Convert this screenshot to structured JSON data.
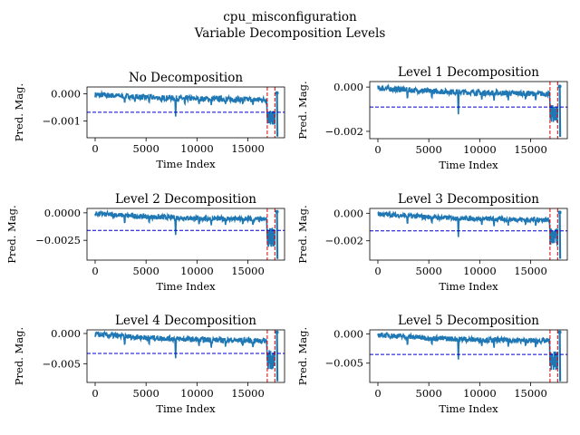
{
  "figure": {
    "suptitle_line1": "cpu_misconfiguration",
    "suptitle_line2": "Variable Decomposition Levels"
  },
  "colors": {
    "series": "#1f77b4",
    "threshold": "#0000cc",
    "anomaly": "#dd0000",
    "axes": "#000000"
  },
  "chart_data": [
    {
      "type": "line",
      "title": "No Decomposition",
      "xlabel": "Time Index",
      "ylabel": "Pred. Mag.",
      "xlim": [
        -800,
        18600
      ],
      "ylim": [
        -0.00162,
        0.00025
      ],
      "xticks": [
        0,
        5000,
        10000,
        15000
      ],
      "xtick_labels": [
        "0",
        "5000",
        "10000",
        "15000"
      ],
      "yticks": [
        0.0,
        -0.001
      ],
      "ytick_labels": [
        "0.000",
        "−0.001"
      ],
      "threshold": -0.00068,
      "anomaly_window": [
        16900,
        17650
      ],
      "series_profile": {
        "baseline": [
          [
            0,
            -3e-05
          ],
          [
            5000,
            -0.00013
          ],
          [
            10000,
            -0.00018
          ],
          [
            16500,
            -0.00022
          ]
        ],
        "noise_band": 0.0002,
        "dips": [
          [
            2900,
            -0.00038
          ],
          [
            3900,
            -0.00034
          ],
          [
            5300,
            -0.00036
          ],
          [
            6500,
            -0.00032
          ],
          [
            7900,
            -0.00092
          ],
          [
            8800,
            -0.00042
          ],
          [
            10200,
            -0.0004
          ],
          [
            11400,
            -0.00044
          ],
          [
            12800,
            -0.00038
          ],
          [
            14500,
            -0.0004
          ],
          [
            15500,
            -0.00045
          ]
        ],
        "anomaly_range": [
          -0.00115,
          -0.00062
        ],
        "end_spike": [
          [
            17850,
            3e-05
          ],
          [
            17900,
            -0.00158
          ]
        ]
      }
    },
    {
      "type": "line",
      "title": "Level 1 Decomposition",
      "xlabel": "Time Index",
      "ylabel": "Pred. Mag.",
      "xlim": [
        -800,
        18600
      ],
      "ylim": [
        -0.00233,
        0.00025
      ],
      "xticks": [
        0,
        5000,
        10000,
        15000
      ],
      "xtick_labels": [
        "0",
        "5000",
        "10000",
        "15000"
      ],
      "yticks": [
        0.0,
        -0.002
      ],
      "ytick_labels": [
        "0.000",
        "−0.002"
      ],
      "threshold": -0.0009,
      "anomaly_window": [
        16900,
        17650
      ],
      "series_profile": {
        "baseline": [
          [
            0,
            -5e-05
          ],
          [
            5000,
            -0.00018
          ],
          [
            10000,
            -0.00025
          ],
          [
            16500,
            -0.0003
          ]
        ],
        "noise_band": 0.00025,
        "dips": [
          [
            2900,
            -0.0006
          ],
          [
            5300,
            -0.00055
          ],
          [
            7900,
            -0.00135
          ],
          [
            10200,
            -0.0006
          ],
          [
            11400,
            -0.00065
          ],
          [
            12800,
            -0.0006
          ],
          [
            14500,
            -0.0006
          ],
          [
            15500,
            -0.00065
          ]
        ],
        "anomaly_range": [
          -0.0016,
          -0.0008
        ],
        "end_spike": [
          [
            17850,
            3e-05
          ],
          [
            17900,
            -0.00225
          ]
        ]
      }
    },
    {
      "type": "line",
      "title": "Level 2 Decomposition",
      "xlabel": "Time Index",
      "ylabel": "Pred. Mag.",
      "xlim": [
        -800,
        18600
      ],
      "ylim": [
        -0.0043,
        0.0004
      ],
      "xticks": [
        0,
        5000,
        10000,
        15000
      ],
      "xtick_labels": [
        "0",
        "5000",
        "10000",
        "15000"
      ],
      "yticks": [
        0.0,
        -0.0025
      ],
      "ytick_labels": [
        "0.0000",
        "−0.0025"
      ],
      "threshold": -0.0016,
      "anomaly_window": [
        16900,
        17650
      ],
      "series_profile": {
        "baseline": [
          [
            0,
            -8e-05
          ],
          [
            5000,
            -0.00035
          ],
          [
            10000,
            -0.0005
          ],
          [
            16500,
            -0.0006
          ]
        ],
        "noise_band": 0.00045,
        "dips": [
          [
            2900,
            -0.0011
          ],
          [
            5300,
            -0.001
          ],
          [
            7900,
            -0.0022
          ],
          [
            10200,
            -0.0011
          ],
          [
            11400,
            -0.0012
          ],
          [
            12800,
            -0.0011
          ],
          [
            14500,
            -0.0011
          ],
          [
            15500,
            -0.0012
          ]
        ],
        "anomaly_range": [
          -0.0031,
          -0.0014
        ],
        "end_spike": [
          [
            17850,
            0.0001
          ],
          [
            17900,
            -0.0042
          ]
        ]
      }
    },
    {
      "type": "line",
      "title": "Level 3 Decomposition",
      "xlabel": "Time Index",
      "ylabel": "Pred. Mag.",
      "xlim": [
        -800,
        18600
      ],
      "ylim": [
        -0.0034,
        0.00035
      ],
      "xticks": [
        0,
        5000,
        10000,
        15000
      ],
      "xtick_labels": [
        "0",
        "5000",
        "10000",
        "15000"
      ],
      "yticks": [
        0.0,
        -0.002
      ],
      "ytick_labels": [
        "0.000",
        "−0.002"
      ],
      "threshold": -0.00128,
      "anomaly_window": [
        16900,
        17650
      ],
      "series_profile": {
        "baseline": [
          [
            0,
            -6e-05
          ],
          [
            5000,
            -0.00028
          ],
          [
            10000,
            -0.0004
          ],
          [
            16500,
            -0.00048
          ]
        ],
        "noise_band": 0.00035,
        "dips": [
          [
            2900,
            -0.0009
          ],
          [
            5300,
            -0.0008
          ],
          [
            7900,
            -0.0019
          ],
          [
            10200,
            -0.0009
          ],
          [
            11400,
            -0.001
          ],
          [
            12800,
            -0.0009
          ],
          [
            14500,
            -0.0009
          ],
          [
            15500,
            -0.001
          ]
        ],
        "anomaly_range": [
          -0.0024,
          -0.0011
        ],
        "end_spike": [
          [
            17850,
            6e-05
          ],
          [
            17900,
            -0.0033
          ]
        ]
      }
    },
    {
      "type": "line",
      "title": "Level 4 Decomposition",
      "xlabel": "Time Index",
      "ylabel": "Pred. Mag.",
      "xlim": [
        -800,
        18600
      ],
      "ylim": [
        -0.0081,
        0.0006
      ],
      "xticks": [
        0,
        5000,
        10000,
        15000
      ],
      "xtick_labels": [
        "0",
        "5000",
        "10000",
        "15000"
      ],
      "yticks": [
        0.0,
        -0.005
      ],
      "ytick_labels": [
        "0.000",
        "−0.005"
      ],
      "threshold": -0.0033,
      "anomaly_window": [
        16900,
        17650
      ],
      "series_profile": {
        "baseline": [
          [
            0,
            -0.00015
          ],
          [
            5000,
            -0.0007
          ],
          [
            10000,
            -0.001
          ],
          [
            16500,
            -0.0012
          ]
        ],
        "noise_band": 0.0009,
        "dips": [
          [
            2900,
            -0.0022
          ],
          [
            5300,
            -0.002
          ],
          [
            7900,
            -0.0045
          ],
          [
            10200,
            -0.0022
          ],
          [
            11400,
            -0.0025
          ],
          [
            12800,
            -0.0022
          ],
          [
            14500,
            -0.0022
          ],
          [
            15500,
            -0.0025
          ]
        ],
        "anomaly_range": [
          -0.006,
          -0.0028
        ],
        "end_spike": [
          [
            17850,
            0.0002
          ],
          [
            17900,
            -0.0079
          ]
        ]
      }
    },
    {
      "type": "line",
      "title": "Level 5 Decomposition",
      "xlabel": "Time Index",
      "ylabel": "Pred. Mag.",
      "xlim": [
        -800,
        18600
      ],
      "ylim": [
        -0.0083,
        0.0007
      ],
      "xticks": [
        0,
        5000,
        10000,
        15000
      ],
      "xtick_labels": [
        "0",
        "5000",
        "10000",
        "15000"
      ],
      "yticks": [
        0.0,
        -0.005
      ],
      "ytick_labels": [
        "0.000",
        "−0.005"
      ],
      "threshold": -0.0035,
      "anomaly_window": [
        16900,
        17650
      ],
      "series_profile": {
        "baseline": [
          [
            0,
            -0.00015
          ],
          [
            5000,
            -0.0007
          ],
          [
            10000,
            -0.001
          ],
          [
            16500,
            -0.0012
          ]
        ],
        "noise_band": 0.0009,
        "dips": [
          [
            2900,
            -0.0022
          ],
          [
            5300,
            -0.002
          ],
          [
            7900,
            -0.0048
          ],
          [
            10200,
            -0.0022
          ],
          [
            11400,
            -0.0025
          ],
          [
            12800,
            -0.0022
          ],
          [
            14500,
            -0.0022
          ],
          [
            15500,
            -0.0025
          ]
        ],
        "anomaly_range": [
          -0.0062,
          -0.003
        ],
        "end_spike": [
          [
            17850,
            0.0003
          ],
          [
            17900,
            -0.0081
          ]
        ]
      }
    }
  ]
}
